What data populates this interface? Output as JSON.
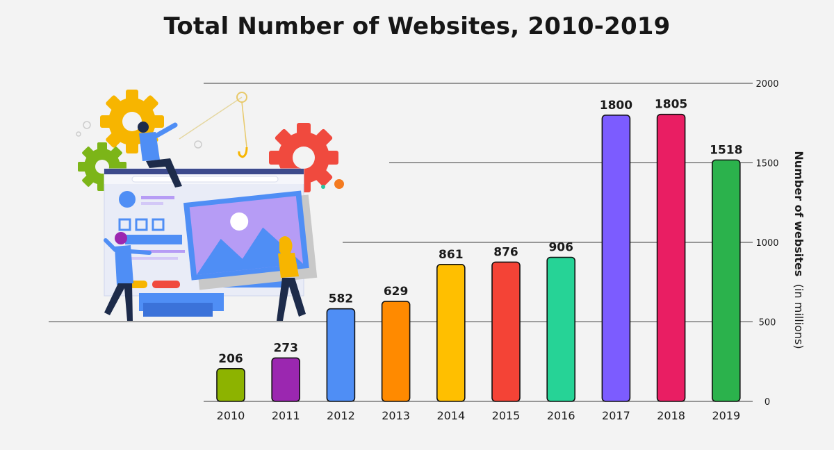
{
  "chart_data": {
    "type": "bar",
    "title": "Total Number of Websites, 2010-2019",
    "categories": [
      "2010",
      "2011",
      "2012",
      "2013",
      "2014",
      "2015",
      "2016",
      "2017",
      "2018",
      "2019"
    ],
    "values": [
      206,
      273,
      582,
      629,
      861,
      876,
      906,
      1800,
      1805,
      1518
    ],
    "bar_colors": [
      "#8db300",
      "#9b27b0",
      "#4f8ef5",
      "#ff8a00",
      "#ffbf00",
      "#f44336",
      "#26d396",
      "#7c5cff",
      "#e91e63",
      "#2bb24c"
    ],
    "ylabel_bold": "Number of websites",
    "ylabel_rest": "(in millions)",
    "ylim": [
      0,
      2000
    ],
    "yticks": [
      0,
      500,
      1000,
      1500,
      2000
    ],
    "y_axis_side": "right",
    "grid": true
  }
}
